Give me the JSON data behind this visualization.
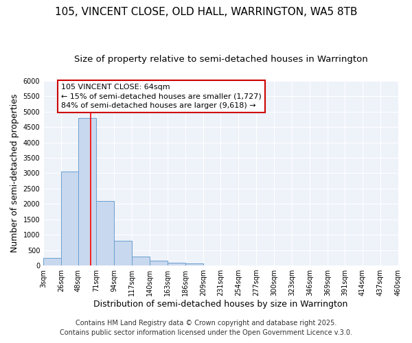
{
  "title": "105, VINCENT CLOSE, OLD HALL, WARRINGTON, WA5 8TB",
  "subtitle": "Size of property relative to semi-detached houses in Warrington",
  "xlabel": "Distribution of semi-detached houses by size in Warrington",
  "ylabel": "Number of semi-detached properties",
  "bar_color": "#c8d8ee",
  "bar_edge_color": "#6a9fd0",
  "bin_edges": [
    3,
    26,
    48,
    71,
    94,
    117,
    140,
    163,
    186,
    209,
    231,
    254,
    277,
    300,
    323,
    346,
    369,
    391,
    414,
    437,
    460
  ],
  "bar_heights": [
    250,
    3050,
    4800,
    2100,
    800,
    300,
    150,
    100,
    60,
    0,
    0,
    0,
    0,
    0,
    0,
    0,
    0,
    0,
    0,
    0
  ],
  "red_line_x": 64,
  "annotation_text": "105 VINCENT CLOSE: 64sqm\n← 15% of semi-detached houses are smaller (1,727)\n84% of semi-detached houses are larger (9,618) →",
  "annotation_box_color": "#ffffff",
  "annotation_box_edge_color": "#cc0000",
  "ylim": [
    0,
    6000
  ],
  "yticks": [
    0,
    500,
    1000,
    1500,
    2000,
    2500,
    3000,
    3500,
    4000,
    4500,
    5000,
    5500,
    6000
  ],
  "tick_labels": [
    "3sqm",
    "26sqm",
    "48sqm",
    "71sqm",
    "94sqm",
    "117sqm",
    "140sqm",
    "163sqm",
    "186sqm",
    "209sqm",
    "231sqm",
    "254sqm",
    "277sqm",
    "300sqm",
    "323sqm",
    "346sqm",
    "369sqm",
    "391sqm",
    "414sqm",
    "437sqm",
    "460sqm"
  ],
  "footer1": "Contains HM Land Registry data © Crown copyright and database right 2025.",
  "footer2": "Contains public sector information licensed under the Open Government Licence v.3.0.",
  "background_color": "#ffffff",
  "plot_bg_color": "#eef2f9",
  "grid_color": "#ffffff",
  "title_fontsize": 11,
  "subtitle_fontsize": 9.5,
  "axis_label_fontsize": 9,
  "tick_fontsize": 7,
  "footer_fontsize": 7,
  "annotation_fontsize": 8
}
